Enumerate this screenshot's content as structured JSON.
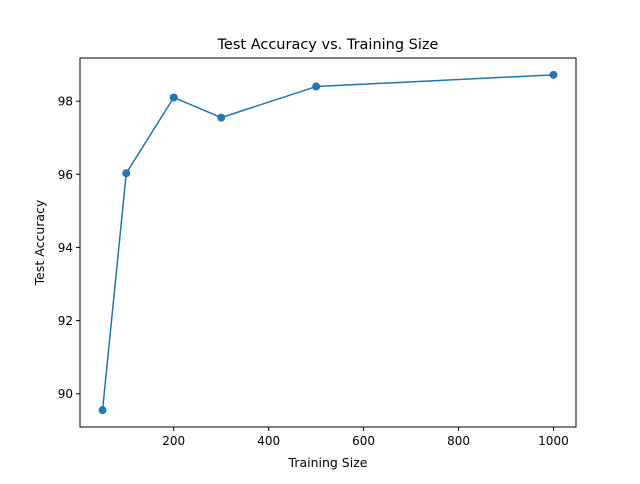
{
  "chart_data": {
    "type": "line",
    "title": "Test Accuracy vs. Training Size",
    "xlabel": "Training Size",
    "ylabel": "Test Accuracy",
    "x": [
      50,
      100,
      200,
      300,
      500,
      1000
    ],
    "series": [
      {
        "values": [
          89.55,
          96.03,
          98.1,
          97.55,
          98.4,
          98.72
        ],
        "color": "#1f77b4",
        "marker": "circle"
      }
    ],
    "xlim": [
      2.5,
      1047.5
    ],
    "ylim": [
      89.09,
      99.18
    ],
    "xticks": [
      200,
      400,
      600,
      800,
      1000
    ],
    "yticks": [
      90,
      92,
      94,
      96,
      98
    ],
    "grid": false,
    "legend": "none"
  }
}
